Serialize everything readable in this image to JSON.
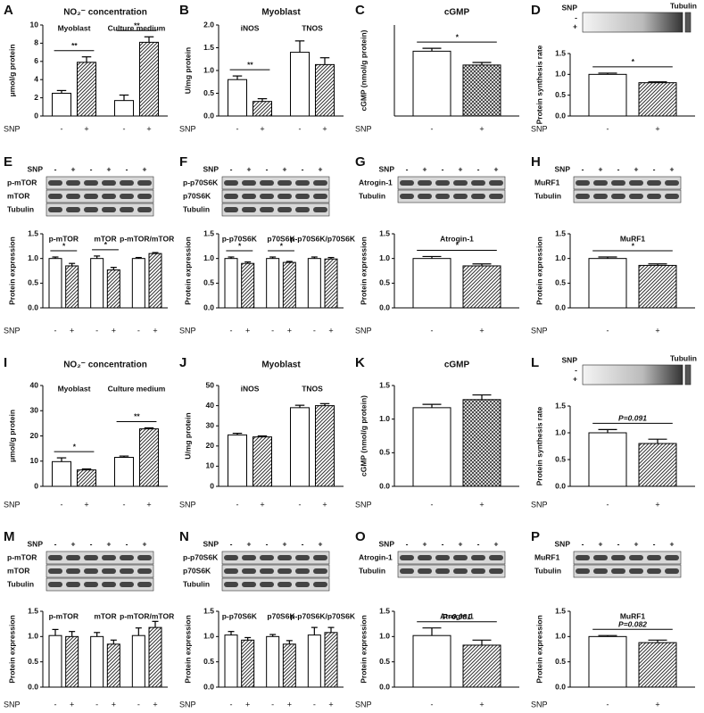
{
  "chart_data": [
    {
      "type": "bar",
      "letter": "A",
      "title": "NO₂⁻ concentration",
      "ylabel": "μmol/g protein",
      "ylim": [
        0,
        10
      ],
      "yticks": [
        0,
        2,
        4,
        6,
        8,
        10
      ],
      "xlabel": "SNP",
      "hatch": "diagonal",
      "groups": [
        {
          "label": "Myoblast",
          "categories": [
            "-",
            "+"
          ],
          "values": [
            2.5,
            5.9
          ],
          "errors": [
            0.3,
            0.6
          ],
          "sig": "**"
        },
        {
          "label": "Culture medium",
          "categories": [
            "-",
            "+"
          ],
          "values": [
            1.7,
            8.1
          ],
          "errors": [
            0.6,
            0.6
          ],
          "sig": "**"
        }
      ]
    },
    {
      "type": "bar",
      "letter": "B",
      "title": "Myoblast",
      "ylabel": "U/mg protein",
      "ylim": [
        0,
        2
      ],
      "yticks": [
        {
          "value": 0,
          "label": "0.0"
        },
        0.5,
        {
          "value": 1,
          "label": "1.0"
        },
        1.5,
        {
          "value": 2,
          "label": "2.0"
        }
      ],
      "xlabel": "SNP",
      "hatch": "diagonal",
      "groups": [
        {
          "label": "iNOS",
          "categories": [
            "-",
            "+"
          ],
          "values": [
            0.8,
            0.32
          ],
          "errors": [
            0.08,
            0.06
          ],
          "sig": "**"
        },
        {
          "label": "TNOS",
          "categories": [
            "-",
            "+"
          ],
          "values": [
            1.4,
            1.13
          ],
          "errors": [
            0.25,
            0.15
          ]
        }
      ]
    },
    {
      "type": "bar",
      "letter": "C",
      "title": "cGMP",
      "ylabel": "cGMP (nmol/g protein)",
      "ylim": [
        0,
        2.5
      ],
      "xlabel": "SNP",
      "hatch": "cross",
      "groups": [
        {
          "categories": [
            "-",
            "+"
          ],
          "values": [
            1.78,
            1.4
          ],
          "errors": [
            0.08,
            0.07
          ],
          "sig": "*"
        }
      ]
    },
    {
      "type": "bar",
      "letter": "D",
      "ylabel": "Protein synthesis rate",
      "ylim": [
        0,
        1.5
      ],
      "yticks": [
        {
          "value": 0,
          "label": "0.0"
        },
        0.5,
        {
          "value": 1,
          "label": "1.0"
        },
        1.5
      ],
      "xlabel": "SNP",
      "hatch": "diagonal",
      "blot": {
        "kind": "strip",
        "label": "SNP",
        "rows": [
          "-",
          "+"
        ],
        "marker": "Tubulin"
      },
      "groups": [
        {
          "categories": [
            "-",
            "+"
          ],
          "values": [
            1.0,
            0.8
          ],
          "errors": [
            0.03,
            0.02
          ],
          "sig": "*"
        }
      ]
    },
    {
      "type": "bar",
      "letter": "E",
      "ylabel": "Protein expression",
      "ylim": [
        0,
        1.5
      ],
      "yticks": [
        {
          "value": 0,
          "label": "0.0"
        },
        0.5,
        {
          "value": 1,
          "label": "1.0"
        },
        1.5
      ],
      "xlabel": "SNP",
      "hatch": "diagonal",
      "blot": {
        "kind": "lanes",
        "label": "SNP",
        "lanes": [
          "-",
          "+",
          "-",
          "+",
          "-",
          "+"
        ],
        "rows": [
          "p-mTOR",
          "mTOR",
          "Tubulin"
        ]
      },
      "groups": [
        {
          "label": "p-mTOR",
          "categories": [
            "-",
            "+"
          ],
          "values": [
            1.0,
            0.85
          ],
          "errors": [
            0.03,
            0.05
          ],
          "sig": "*"
        },
        {
          "label": "mTOR",
          "categories": [
            "-",
            "+"
          ],
          "values": [
            1.0,
            0.77
          ],
          "errors": [
            0.05,
            0.05
          ],
          "sig": "*"
        },
        {
          "label": "p-mTOR/mTOR",
          "categories": [
            "-",
            "+"
          ],
          "values": [
            1.0,
            1.1
          ],
          "errors": [
            0.02,
            0.02
          ]
        }
      ]
    },
    {
      "type": "bar",
      "letter": "F",
      "ylabel": "Protein expression",
      "ylim": [
        0,
        1.5
      ],
      "yticks": [
        {
          "value": 0,
          "label": "0.0"
        },
        0.5,
        {
          "value": 1,
          "label": "1.0"
        },
        1.5
      ],
      "xlabel": "SNP",
      "hatch": "diagonal",
      "blot": {
        "kind": "lanes",
        "label": "SNP",
        "lanes": [
          "-",
          "+",
          "-",
          "+",
          "-",
          "+"
        ],
        "rows": [
          "p-p70S6K",
          "p70S6K",
          "Tubulin"
        ]
      },
      "groups": [
        {
          "label": "p-p70S6K",
          "categories": [
            "-",
            "+"
          ],
          "values": [
            1.0,
            0.9
          ],
          "errors": [
            0.03,
            0.03
          ],
          "sig": "*"
        },
        {
          "label": "p70S6K",
          "categories": [
            "-",
            "+"
          ],
          "values": [
            1.0,
            0.92
          ],
          "errors": [
            0.03,
            0.02
          ],
          "sig": "*"
        },
        {
          "label": "p-p70S6K/p70S6K",
          "categories": [
            "-",
            "+"
          ],
          "values": [
            1.0,
            0.99
          ],
          "errors": [
            0.03,
            0.03
          ]
        }
      ]
    },
    {
      "type": "bar",
      "letter": "G",
      "title": "Atrogin-1",
      "ylabel": "Protein expression",
      "ylim": [
        0,
        1.5
      ],
      "yticks": [
        {
          "value": 0,
          "label": "0.0"
        },
        0.5,
        {
          "value": 1,
          "label": "1.0"
        },
        1.5
      ],
      "xlabel": "SNP",
      "hatch": "diagonal",
      "blot": {
        "kind": "lanes",
        "label": "SNP",
        "lanes": [
          "-",
          "+",
          "-",
          "+",
          "-",
          "+"
        ],
        "rows": [
          "Atrogin-1",
          "Tubulin"
        ]
      },
      "groups": [
        {
          "categories": [
            "-",
            "+"
          ],
          "values": [
            1.0,
            0.85
          ],
          "errors": [
            0.04,
            0.04
          ],
          "sig": "*"
        }
      ]
    },
    {
      "type": "bar",
      "letter": "H",
      "title": "MuRF1",
      "ylabel": "Protein expression",
      "ylim": [
        0,
        1.5
      ],
      "yticks": [
        {
          "value": 0,
          "label": "0.0"
        },
        0.5,
        {
          "value": 1,
          "label": "1.0"
        },
        1.5
      ],
      "xlabel": "SNP",
      "hatch": "diagonal",
      "blot": {
        "kind": "lanes",
        "label": "SNP",
        "lanes": [
          "-",
          "+",
          "-",
          "+",
          "-",
          "+"
        ],
        "rows": [
          "MuRF1",
          "Tubulin"
        ]
      },
      "groups": [
        {
          "categories": [
            "-",
            "+"
          ],
          "values": [
            1.0,
            0.86
          ],
          "errors": [
            0.03,
            0.03
          ],
          "sig": "*"
        }
      ]
    },
    {
      "type": "bar",
      "letter": "I",
      "title": "NO₂⁻ concentration",
      "ylabel": "μmol/g protein",
      "ylim": [
        0,
        40
      ],
      "yticks": [
        0,
        10,
        20,
        30,
        40
      ],
      "xlabel": "SNP",
      "hatch": "diagonal",
      "groups": [
        {
          "label": "Myoblast",
          "categories": [
            "-",
            "+"
          ],
          "values": [
            9.8,
            6.5
          ],
          "errors": [
            1.5,
            0.4
          ],
          "sig": "*"
        },
        {
          "label": "Culture medium",
          "categories": [
            "-",
            "+"
          ],
          "values": [
            11.5,
            22.8
          ],
          "errors": [
            0.5,
            0.4
          ],
          "sig": "**"
        }
      ]
    },
    {
      "type": "bar",
      "letter": "J",
      "title": "Myoblast",
      "ylabel": "U/mg protein",
      "ylim": [
        0,
        50
      ],
      "yticks": [
        0,
        10,
        20,
        30,
        40,
        50
      ],
      "xlabel": "SNP",
      "hatch": "diagonal",
      "groups": [
        {
          "label": "iNOS",
          "categories": [
            "-",
            "+"
          ],
          "values": [
            25.5,
            24.5
          ],
          "errors": [
            0.8,
            0.5
          ]
        },
        {
          "label": "TNOS",
          "categories": [
            "-",
            "+"
          ],
          "values": [
            39,
            40
          ],
          "errors": [
            1.2,
            1
          ]
        }
      ]
    },
    {
      "type": "bar",
      "letter": "K",
      "title": "cGMP",
      "ylabel": "cGMP (nmol/g protein)",
      "ylim": [
        0,
        1.5
      ],
      "yticks": [
        {
          "value": 0,
          "label": "0.0"
        },
        0.5,
        {
          "value": 1,
          "label": "1.0"
        },
        1.5
      ],
      "xlabel": "SNP",
      "hatch": "cross",
      "groups": [
        {
          "categories": [
            "-",
            "+"
          ],
          "values": [
            1.17,
            1.29
          ],
          "errors": [
            0.05,
            0.07
          ]
        }
      ]
    },
    {
      "type": "bar",
      "letter": "L",
      "ylabel": "Protein synthesis rate",
      "ylim": [
        0,
        1.5
      ],
      "yticks": [
        {
          "value": 0,
          "label": "0.0"
        },
        0.5,
        {
          "value": 1,
          "label": "1.0"
        },
        1.5
      ],
      "xlabel": "SNP",
      "hatch": "diagonal",
      "blot": {
        "kind": "strip",
        "label": "SNP",
        "rows": [
          "-",
          "+"
        ],
        "marker": "Tubulin"
      },
      "groups": [
        {
          "categories": [
            "-",
            "+"
          ],
          "values": [
            1.0,
            0.8
          ],
          "errors": [
            0.06,
            0.08
          ],
          "sig": "P=0.091"
        }
      ]
    },
    {
      "type": "bar",
      "letter": "M",
      "ylabel": "Protein expression",
      "ylim": [
        0,
        1.5
      ],
      "yticks": [
        {
          "value": 0,
          "label": "0.0"
        },
        0.5,
        {
          "value": 1,
          "label": "1.0"
        },
        1.5
      ],
      "xlabel": "SNP",
      "hatch": "diagonal",
      "blot": {
        "kind": "lanes",
        "label": "SNP",
        "lanes": [
          "-",
          "+",
          "-",
          "+",
          "-",
          "+"
        ],
        "rows": [
          "p-mTOR",
          "mTOR",
          "Tubulin"
        ]
      },
      "groups": [
        {
          "label": "p-mTOR",
          "categories": [
            "-",
            "+"
          ],
          "values": [
            1.02,
            1.0
          ],
          "errors": [
            0.12,
            0.1
          ]
        },
        {
          "label": "mTOR",
          "categories": [
            "-",
            "+"
          ],
          "values": [
            1.0,
            0.85
          ],
          "errors": [
            0.08,
            0.08
          ]
        },
        {
          "label": "p-mTOR/mTOR",
          "categories": [
            "-",
            "+"
          ],
          "values": [
            1.02,
            1.18
          ],
          "errors": [
            0.15,
            0.12
          ]
        }
      ]
    },
    {
      "type": "bar",
      "letter": "N",
      "ylabel": "Protein expression",
      "ylim": [
        0,
        1.5
      ],
      "yticks": [
        {
          "value": 0,
          "label": "0.0"
        },
        0.5,
        {
          "value": 1,
          "label": "1.0"
        },
        1.5
      ],
      "xlabel": "SNP",
      "hatch": "diagonal",
      "blot": {
        "kind": "lanes",
        "label": "SNP",
        "lanes": [
          "-",
          "+",
          "-",
          "+",
          "-",
          "+"
        ],
        "rows": [
          "p-p70S6K",
          "p70S6K",
          "Tubulin"
        ]
      },
      "groups": [
        {
          "label": "p-p70S6K",
          "categories": [
            "-",
            "+"
          ],
          "values": [
            1.03,
            0.93
          ],
          "errors": [
            0.07,
            0.05
          ]
        },
        {
          "label": "p70S6K",
          "categories": [
            "-",
            "+"
          ],
          "values": [
            1.0,
            0.85
          ],
          "errors": [
            0.04,
            0.07
          ]
        },
        {
          "label": "p-p70S6K/p70S6K",
          "categories": [
            "-",
            "+"
          ],
          "values": [
            1.03,
            1.08
          ],
          "errors": [
            0.15,
            0.1
          ]
        }
      ]
    },
    {
      "type": "bar",
      "letter": "O",
      "title": "Atrogin-1",
      "ylabel": "Protein expression",
      "ylim": [
        0,
        1.5
      ],
      "yticks": [
        {
          "value": 0,
          "label": "0.0"
        },
        0.5,
        {
          "value": 1,
          "label": "1.0"
        },
        1.5
      ],
      "xlabel": "SNP",
      "hatch": "diagonal",
      "blot": {
        "kind": "lanes",
        "label": "SNP",
        "lanes": [
          "-",
          "+",
          "-",
          "+",
          "-",
          "+"
        ],
        "rows": [
          "Atrogin-1",
          "Tubulin"
        ]
      },
      "groups": [
        {
          "categories": [
            "-",
            "+"
          ],
          "values": [
            1.02,
            0.83
          ],
          "errors": [
            0.15,
            0.1
          ],
          "sig": "P=0.081"
        }
      ]
    },
    {
      "type": "bar",
      "letter": "P",
      "title": "MuRF1",
      "ylabel": "Protein expression",
      "ylim": [
        0,
        1.5
      ],
      "yticks": [
        {
          "value": 0,
          "label": "0.0"
        },
        0.5,
        {
          "value": 1,
          "label": "1.0"
        },
        1.5
      ],
      "xlabel": "SNP",
      "hatch": "diagonal",
      "blot": {
        "kind": "lanes",
        "label": "SNP",
        "lanes": [
          "-",
          "+",
          "-",
          "+",
          "-",
          "+"
        ],
        "rows": [
          "MuRF1",
          "Tubulin"
        ]
      },
      "groups": [
        {
          "categories": [
            "-",
            "+"
          ],
          "values": [
            1.0,
            0.88
          ],
          "errors": [
            0.02,
            0.05
          ],
          "sig": "P=0.082"
        }
      ]
    }
  ]
}
